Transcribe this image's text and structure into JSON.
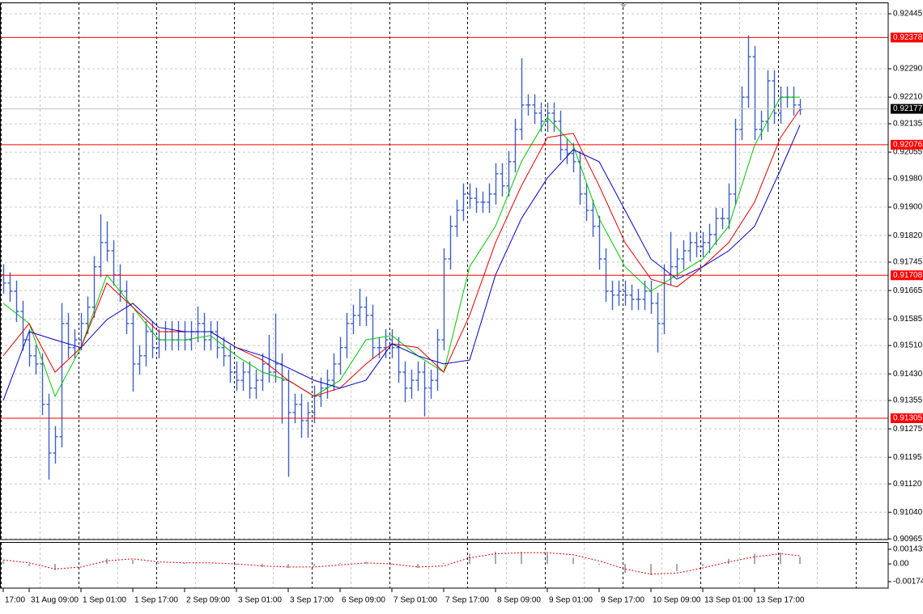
{
  "chart_data": [
    {
      "type": "ohlc",
      "color": "#3f5fc8",
      "categories": [
        "17:00",
        null,
        null,
        null,
        "31 Aug 09:00",
        null,
        null,
        null,
        null,
        null,
        null,
        null,
        "1 Sep 01:00",
        null,
        null,
        null,
        null,
        null,
        null,
        null,
        "1 Sep 17:00",
        null,
        null,
        null,
        null,
        null,
        null,
        null,
        "2 Sep 09:00",
        null,
        null,
        null,
        null,
        null,
        null,
        null,
        "3 Sep 01:00",
        null,
        null,
        null,
        null,
        null,
        null,
        null,
        "3 Sep 17:00",
        null,
        null,
        null,
        null,
        null,
        null,
        null,
        "6 Sep 09:00",
        null,
        null,
        null,
        null,
        null,
        null,
        null,
        "7 Sep 01:00",
        null,
        null,
        null,
        null,
        null,
        null,
        null,
        "7 Sep 17:00",
        null,
        null,
        null,
        null,
        null,
        null,
        null,
        "8 Sep 09:00",
        null,
        null,
        null,
        null,
        null,
        null,
        null,
        "9 Sep 01:00",
        null,
        null,
        null,
        null,
        null,
        null,
        null,
        "9 Sep 17:00",
        null,
        null,
        null,
        null,
        null,
        null,
        null,
        "10 Sep 09:00",
        null,
        null,
        null,
        null,
        null,
        null,
        null,
        "13 Sep 01:00",
        null,
        null,
        null,
        null,
        null,
        null,
        null,
        "13 Sep 17:00",
        null,
        null,
        null,
        null,
        null,
        null,
        null
      ],
      "open": [
        0.91709,
        0.91686,
        0.91663,
        0.91606,
        0.91526,
        0.91481,
        0.91458,
        0.91344,
        0.91207,
        0.91253,
        0.91572,
        0.91504,
        0.91526,
        0.91572,
        0.91618,
        0.91732,
        0.918,
        0.91777,
        0.91709,
        0.91663,
        0.91572,
        0.91458,
        0.91481,
        0.91549,
        0.91504,
        0.91526,
        0.91549,
        0.91526,
        0.91549,
        0.91526,
        0.91549,
        0.91572,
        0.91526,
        0.91549,
        0.91504,
        0.91481,
        0.91435,
        0.91412,
        0.91435,
        0.9139,
        0.91412,
        0.91458,
        0.91435,
        0.91458,
        0.91412,
        0.91321,
        0.91344,
        0.91298,
        0.91321,
        0.91367,
        0.9139,
        0.91412,
        0.91458,
        0.91504,
        0.91572,
        0.91595,
        0.91618,
        0.91595,
        0.91504,
        0.91504,
        0.91526,
        0.91504,
        0.91435,
        0.9139,
        0.91412,
        0.91435,
        0.9139,
        0.91412,
        0.91526,
        0.91754,
        0.91846,
        0.91891,
        0.91937,
        0.91925,
        0.91914,
        0.91914,
        0.91937,
        0.91994,
        0.9196,
        0.92028,
        0.92119,
        0.92188,
        0.92188,
        0.92165,
        0.92142,
        0.92165,
        0.92142,
        0.92062,
        0.92051,
        0.92028,
        0.91937,
        0.91891,
        0.91846,
        0.91754,
        0.91663,
        0.91652,
        0.91663,
        0.91652,
        0.9164,
        0.9164,
        0.91663,
        0.91629,
        0.91572,
        0.91709,
        0.91732,
        0.91754,
        0.91777,
        0.918,
        0.91789,
        0.918,
        0.91823,
        0.91868,
        0.91868,
        0.91937,
        0.92119,
        0.9221,
        0.92324,
        0.92119,
        0.92142,
        0.92256,
        0.92165,
        0.9221,
        0.9221,
        0.92188
      ],
      "high": [
        0.91739,
        0.91716,
        0.91693,
        0.91636,
        0.91556,
        0.91511,
        0.91488,
        0.91374,
        0.91283,
        0.9163,
        0.91602,
        0.91556,
        0.91602,
        0.91648,
        0.91762,
        0.9188,
        0.9186,
        0.91807,
        0.91739,
        0.91693,
        0.91602,
        0.91511,
        0.91579,
        0.91579,
        0.91556,
        0.91579,
        0.91579,
        0.91579,
        0.91579,
        0.91579,
        0.9162,
        0.91602,
        0.91579,
        0.91579,
        0.91534,
        0.91511,
        0.91465,
        0.91465,
        0.91465,
        0.91442,
        0.91488,
        0.9154,
        0.916,
        0.91488,
        0.91442,
        0.91374,
        0.91374,
        0.91351,
        0.91397,
        0.9142,
        0.91442,
        0.91488,
        0.91534,
        0.91602,
        0.91625,
        0.9167,
        0.91648,
        0.91625,
        0.91534,
        0.91556,
        0.91556,
        0.91534,
        0.91465,
        0.91442,
        0.91465,
        0.91465,
        0.91442,
        0.91556,
        0.91784,
        0.91876,
        0.91921,
        0.91967,
        0.91967,
        0.91955,
        0.91944,
        0.91967,
        0.92024,
        0.92024,
        0.92058,
        0.92149,
        0.9232,
        0.92218,
        0.92218,
        0.92195,
        0.92195,
        0.92195,
        0.92172,
        0.92092,
        0.92081,
        0.92058,
        0.91967,
        0.91921,
        0.91876,
        0.91784,
        0.91693,
        0.91693,
        0.91693,
        0.91682,
        0.9167,
        0.91693,
        0.91693,
        0.91659,
        0.91739,
        0.9183,
        0.91784,
        0.91807,
        0.9183,
        0.9183,
        0.9183,
        0.91853,
        0.91898,
        0.91898,
        0.91967,
        0.92149,
        0.9224,
        0.92384,
        0.92354,
        0.92172,
        0.92286,
        0.92286,
        0.9224,
        0.9224,
        0.9224,
        0.92205
      ],
      "low": [
        0.91656,
        0.91633,
        0.91576,
        0.91496,
        0.91451,
        0.91428,
        0.91314,
        0.91132,
        0.91177,
        0.91223,
        0.91474,
        0.91474,
        0.91496,
        0.91542,
        0.91588,
        0.91702,
        0.91747,
        0.91679,
        0.91633,
        0.91542,
        0.9138,
        0.91428,
        0.91451,
        0.91474,
        0.91474,
        0.91496,
        0.91496,
        0.91496,
        0.91496,
        0.91496,
        0.91519,
        0.91496,
        0.91496,
        0.91474,
        0.91451,
        0.91405,
        0.91382,
        0.91382,
        0.9136,
        0.9136,
        0.91382,
        0.91405,
        0.91405,
        0.9129,
        0.9114,
        0.91291,
        0.9125,
        0.9125,
        0.91291,
        0.91337,
        0.9136,
        0.91382,
        0.91428,
        0.91474,
        0.91542,
        0.91565,
        0.91565,
        0.91474,
        0.91474,
        0.91474,
        0.91474,
        0.91405,
        0.9135,
        0.9136,
        0.91382,
        0.9131,
        0.9136,
        0.91382,
        0.91496,
        0.91724,
        0.91816,
        0.91861,
        0.91895,
        0.91884,
        0.91884,
        0.91884,
        0.91907,
        0.9193,
        0.9193,
        0.91998,
        0.92089,
        0.92158,
        0.92135,
        0.92112,
        0.92112,
        0.92112,
        0.92032,
        0.92021,
        0.91998,
        0.91907,
        0.91861,
        0.91816,
        0.91724,
        0.91633,
        0.9161,
        0.91622,
        0.91622,
        0.9161,
        0.9161,
        0.9161,
        0.91599,
        0.9149,
        0.91542,
        0.91679,
        0.91702,
        0.91724,
        0.91747,
        0.91759,
        0.91759,
        0.9177,
        0.91793,
        0.91838,
        0.91838,
        0.91907,
        0.92089,
        0.9218,
        0.92089,
        0.92089,
        0.92112,
        0.92135,
        0.92135,
        0.9218,
        0.92158,
        0.9216
      ],
      "close": [
        0.91686,
        0.91663,
        0.91606,
        0.91526,
        0.91481,
        0.91458,
        0.91344,
        0.91207,
        0.91253,
        0.91572,
        0.91504,
        0.91526,
        0.91572,
        0.91618,
        0.91732,
        0.918,
        0.91777,
        0.91709,
        0.91663,
        0.91572,
        0.91458,
        0.91481,
        0.91549,
        0.91504,
        0.91526,
        0.91549,
        0.91526,
        0.91549,
        0.91526,
        0.91549,
        0.91572,
        0.91526,
        0.91549,
        0.91504,
        0.91481,
        0.91435,
        0.91412,
        0.91435,
        0.9139,
        0.91412,
        0.91458,
        0.91435,
        0.91458,
        0.91412,
        0.91321,
        0.91344,
        0.91298,
        0.91321,
        0.91367,
        0.9139,
        0.91412,
        0.91458,
        0.91504,
        0.91572,
        0.91595,
        0.91618,
        0.91595,
        0.91504,
        0.91504,
        0.91526,
        0.91504,
        0.91435,
        0.9139,
        0.91412,
        0.91435,
        0.9139,
        0.91412,
        0.91526,
        0.91754,
        0.91846,
        0.91891,
        0.91937,
        0.91925,
        0.91914,
        0.91914,
        0.91937,
        0.91994,
        0.9196,
        0.92028,
        0.92119,
        0.92188,
        0.92188,
        0.92165,
        0.92142,
        0.92165,
        0.92142,
        0.92062,
        0.92051,
        0.92028,
        0.91937,
        0.91891,
        0.91846,
        0.91754,
        0.91663,
        0.91652,
        0.91663,
        0.91652,
        0.9164,
        0.9164,
        0.91663,
        0.91629,
        0.91572,
        0.91709,
        0.91732,
        0.91754,
        0.91777,
        0.918,
        0.91789,
        0.918,
        0.91823,
        0.91868,
        0.91868,
        0.91937,
        0.92119,
        0.9221,
        0.92324,
        0.92119,
        0.92142,
        0.92256,
        0.92165,
        0.9221,
        0.9221,
        0.92188,
        0.92176
      ],
      "series": [
        {
          "color": "#00c800",
          "x": [
            0,
            4,
            8,
            12,
            16,
            20,
            24,
            28,
            32,
            36,
            40,
            44,
            48,
            52,
            56,
            60,
            64,
            68,
            72,
            76,
            80,
            84,
            88,
            92,
            96,
            100,
            104,
            108,
            112,
            116,
            120,
            123
          ],
          "values": [
            0.91629,
            0.91572,
            0.91367,
            0.91504,
            0.91709,
            0.91618,
            0.91526,
            0.91526,
            0.91538,
            0.91481,
            0.91435,
            0.91412,
            0.91367,
            0.91412,
            0.91526,
            0.91538,
            0.91481,
            0.91435,
            0.91732,
            0.91846,
            0.92028,
            0.92153,
            0.92074,
            0.91868,
            0.91732,
            0.91663,
            0.91709,
            0.91754,
            0.91846,
            0.92074,
            0.9221,
            0.9221
          ]
        },
        {
          "color": "#e00000",
          "x": [
            0,
            4,
            8,
            12,
            16,
            20,
            24,
            28,
            32,
            36,
            40,
            44,
            48,
            52,
            56,
            60,
            64,
            68,
            72,
            76,
            80,
            84,
            88,
            92,
            96,
            100,
            104,
            108,
            112,
            116,
            120,
            123
          ],
          "values": [
            0.91481,
            0.91572,
            0.91435,
            0.91504,
            0.91686,
            0.91618,
            0.91549,
            0.91549,
            0.91549,
            0.91504,
            0.91469,
            0.91412,
            0.91367,
            0.9139,
            0.91458,
            0.91515,
            0.91504,
            0.91435,
            0.91595,
            0.918,
            0.9196,
            0.92096,
            0.92108,
            0.9196,
            0.918,
            0.91697,
            0.91675,
            0.91732,
            0.918,
            0.91914,
            0.92096,
            0.92176
          ]
        },
        {
          "color": "#0000c0",
          "x": [
            0,
            4,
            8,
            12,
            16,
            20,
            24,
            28,
            32,
            36,
            40,
            44,
            48,
            52,
            56,
            60,
            64,
            68,
            72,
            76,
            80,
            84,
            88,
            92,
            96,
            100,
            104,
            108,
            112,
            116,
            120,
            123
          ],
          "values": [
            0.91355,
            0.91549,
            0.91526,
            0.91504,
            0.91583,
            0.91629,
            0.91561,
            0.91549,
            0.91549,
            0.91504,
            0.91481,
            0.91447,
            0.91412,
            0.9139,
            0.91412,
            0.91515,
            0.91481,
            0.91458,
            0.91469,
            0.91709,
            0.91868,
            0.91982,
            0.92062,
            0.92028,
            0.91891,
            0.91754,
            0.91697,
            0.91732,
            0.91777,
            0.91846,
            0.92005,
            0.92131
          ]
        }
      ],
      "ylim": [
        0.90963,
        0.92477
      ],
      "yticks": [
        0.92445,
        {
          "value": 0.9229,
          "label": "0.92290"
        },
        {
          "value": 0.9221,
          "label": "0.92210"
        },
        0.92135,
        0.92055,
        {
          "value": 0.9198,
          "label": "0.91980"
        },
        {
          "value": 0.919,
          "label": "0.91900"
        },
        {
          "value": 0.9182,
          "label": "0.91820"
        },
        0.91745,
        0.91665,
        0.91585,
        {
          "value": 0.9151,
          "label": "0.91510"
        },
        {
          "value": 0.9143,
          "label": "0.91430"
        },
        0.91355,
        0.91275,
        0.91195,
        {
          "value": 0.9112,
          "label": "0.91120"
        },
        {
          "value": 0.9104,
          "label": "0.91040"
        },
        0.90965
      ],
      "grid": true,
      "hlines": [
        0.92378,
        0.92076,
        0.91708,
        0.91305
      ],
      "hline_color": "#ff0000",
      "last_price": 0.92177
    },
    {
      "type": "macd",
      "x": [
        0,
        4,
        8,
        12,
        16,
        20,
        24,
        28,
        32,
        36,
        40,
        44,
        48,
        52,
        56,
        60,
        64,
        68,
        72,
        76,
        80,
        84,
        88,
        92,
        96,
        100,
        104,
        108,
        112,
        116,
        120,
        123
      ],
      "series": [
        {
          "color": "#a8a8a8",
          "values": [
            0.0003,
            -0.0002,
            -0.0006,
            0,
            0.0005,
            0.0004,
            0.0001,
            0.0001,
            0,
            -0.0001,
            -0.0003,
            -0.0004,
            -0.0002,
            0.0001,
            0.0002,
            -0.0001,
            -0.0004,
            0.0001,
            0.001,
            0.0012,
            0.0012,
            0.001,
            0.0006,
            -0.0001,
            -0.0009,
            -0.0011,
            -0.0007,
            -0.0002,
            0.0005,
            0.001,
            0.0011,
            0.0007
          ]
        },
        {
          "color": "#e00000",
          "values": [
            0.0004,
            0.0001,
            -0.0005,
            -0.0003,
            0.0003,
            0.0005,
            0.0002,
            0.0001,
            0.0001,
            0,
            -0.0002,
            -0.0003,
            -0.0003,
            -0.0001,
            0.0001,
            0,
            -0.0003,
            -0.0002,
            0.0006,
            0.001,
            0.0011,
            0.0011,
            0.0009,
            0.0003,
            -0.0005,
            -0.001,
            -0.0009,
            -0.0004,
            0.0002,
            0.0007,
            0.001,
            0.0008
          ]
        }
      ],
      "ylim": [
        -0.00174,
        0.001439
      ],
      "yticks": [
        0.001439,
        {
          "value": 0,
          "label": "0.00"
        },
        -0.00174
      ]
    }
  ]
}
